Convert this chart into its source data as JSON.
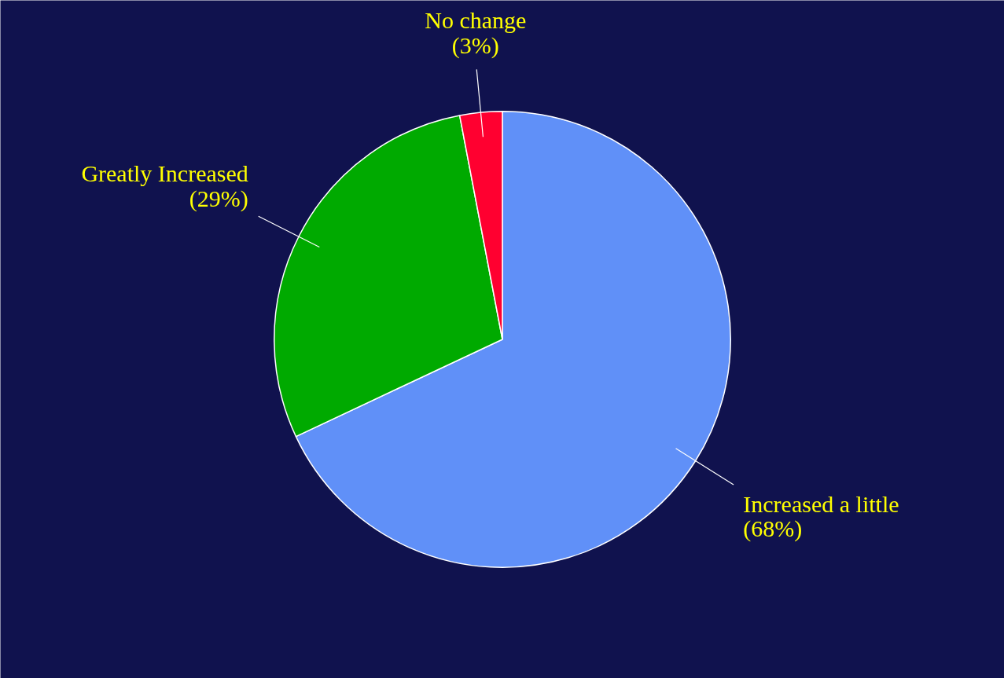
{
  "chart_data": {
    "type": "pie",
    "categories": [
      "Increased a little",
      "Greatly Increased",
      "No change"
    ],
    "values": [
      68,
      29,
      3
    ],
    "colors": [
      "#6090f8",
      "#00aa00",
      "#ff0030"
    ],
    "value_labels": [
      "(68%)",
      "(29%)",
      "(3%)"
    ]
  }
}
